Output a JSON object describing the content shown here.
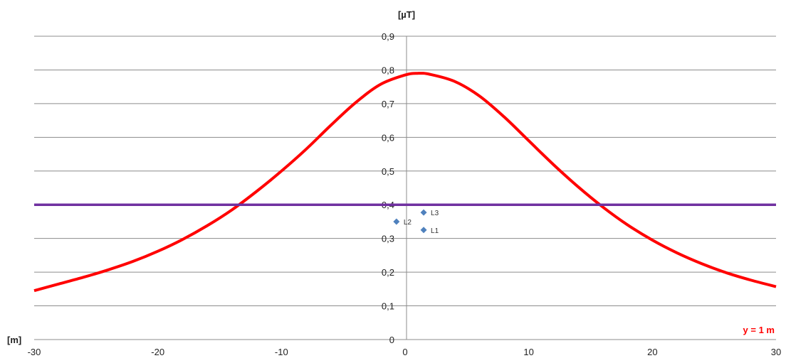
{
  "chart_data": {
    "type": "line",
    "title": "",
    "xlabel": "[m]",
    "ylabel": "[µT]",
    "xlim": [
      -30,
      30
    ],
    "ylim": [
      0,
      0.9
    ],
    "x_ticks": [
      -30,
      -20,
      -10,
      0,
      10,
      20,
      30
    ],
    "y_ticks": [
      "0",
      "0,1",
      "0,2",
      "0,3",
      "0,4",
      "0,5",
      "0,6",
      "0,7",
      "0,8",
      "0,9"
    ],
    "grid": "horizontal",
    "legend": "none",
    "annotation": "y = 1 m",
    "series": [
      {
        "type": "line",
        "color": "#ff0000",
        "x": [
          -30,
          -28,
          -26,
          -24,
          -22,
          -20,
          -18,
          -16,
          -14,
          -12,
          -10,
          -8,
          -6,
          -4,
          -2,
          0,
          1,
          2,
          4,
          6,
          8,
          10,
          12,
          14,
          16,
          18,
          20,
          22,
          24,
          26,
          28,
          30
        ],
        "y": [
          0.145,
          0.165,
          0.185,
          0.207,
          0.232,
          0.262,
          0.297,
          0.338,
          0.385,
          0.44,
          0.5,
          0.565,
          0.636,
          0.703,
          0.757,
          0.785,
          0.79,
          0.787,
          0.766,
          0.723,
          0.661,
          0.59,
          0.519,
          0.453,
          0.393,
          0.34,
          0.295,
          0.257,
          0.225,
          0.198,
          0.176,
          0.157
        ]
      },
      {
        "type": "line",
        "color": "#7030a0",
        "x": [
          -30,
          30
        ],
        "y": [
          0.4,
          0.4
        ]
      }
    ],
    "points": [
      {
        "label": "L1",
        "x": 1.5,
        "y": 0.325
      },
      {
        "label": "L2",
        "x": -0.7,
        "y": 0.35
      },
      {
        "label": "L3",
        "x": 1.5,
        "y": 0.377
      }
    ],
    "point_color": "#4f81bd"
  }
}
